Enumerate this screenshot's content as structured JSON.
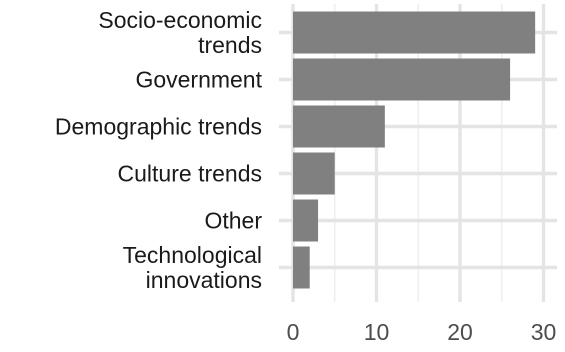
{
  "chart_data": {
    "type": "bar",
    "orientation": "horizontal",
    "categories": [
      [
        "Socio-economic",
        "trends"
      ],
      [
        "Government"
      ],
      [
        "Demographic trends"
      ],
      [
        "Culture trends"
      ],
      [
        "Other"
      ],
      [
        "Technological",
        "innovations"
      ]
    ],
    "values": [
      29,
      26,
      11,
      5,
      3,
      2
    ],
    "xlim": [
      0,
      30
    ],
    "xticks": [
      0,
      10,
      20,
      30
    ],
    "title": "",
    "xlabel": "",
    "ylabel": "",
    "grid": true,
    "bar_color": "#808080"
  }
}
